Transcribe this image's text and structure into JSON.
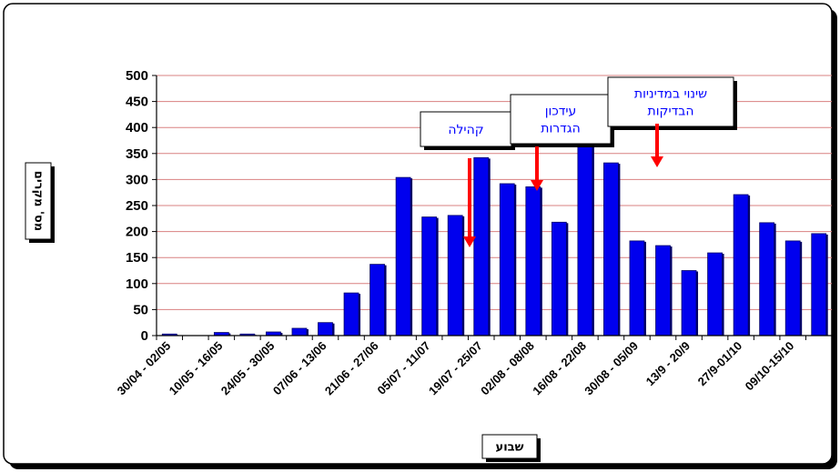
{
  "chart_data": {
    "type": "bar",
    "title": "",
    "xlabel": "שבוע",
    "ylabel": "מס' מקרים",
    "ylim": [
      0,
      500
    ],
    "yticks": [
      0,
      50,
      100,
      150,
      200,
      250,
      300,
      350,
      400,
      450,
      500
    ],
    "grid": true,
    "legend": "none",
    "categories": [
      "30/04 - 02/05",
      "",
      "10/05 - 16/05",
      "",
      "24/05 - 30/05",
      "",
      "07/06 - 13/06",
      "",
      "21/06 - 27/06",
      "",
      "05/07 - 11/07",
      "",
      "19/07 - 25/07",
      "",
      "02/08 - 08/08",
      "",
      "16/08 - 22/08",
      "",
      "30/08 - 05/09",
      "",
      "13/9 - 20/9",
      "",
      "27/9-01/10",
      "",
      "09/10-15/10",
      ""
    ],
    "values": [
      3,
      0,
      6,
      3,
      7,
      14,
      25,
      82,
      137,
      304,
      228,
      231,
      342,
      292,
      286,
      218,
      395,
      332,
      182,
      173,
      125,
      159,
      271,
      217,
      182,
      196
    ],
    "colors": {
      "bar": "#0000ee",
      "bar_edge": "#000066",
      "grid": "#d98080",
      "annotation_arrow": "#ff0000",
      "annotation_text": "#0000ff"
    },
    "annotations": [
      {
        "lines": [
          "קהילה"
        ],
        "bar_index": 11
      },
      {
        "lines": [
          "עידכון",
          "הגדרות"
        ],
        "bar_index": 13
      },
      {
        "lines": [
          "שינוי במדיניות",
          "הבדיקות"
        ],
        "bar_index": 17
      }
    ]
  }
}
